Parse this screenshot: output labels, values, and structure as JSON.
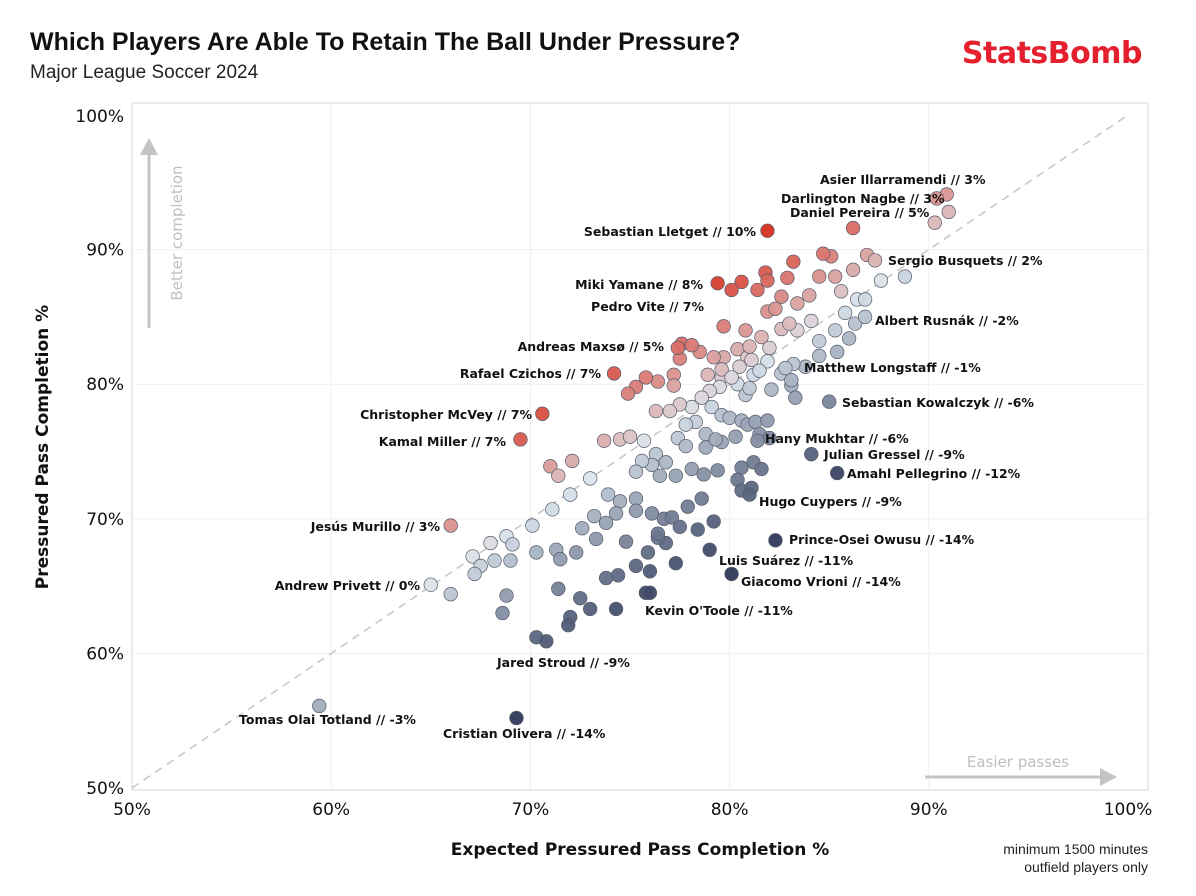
{
  "header": {
    "title": "Which Players Are Able To Retain The Ball Under Pressure?",
    "subtitle": "Major League Soccer 2024",
    "brand": "StatsBomb"
  },
  "footnote": {
    "line1": "minimum 1500 minutes",
    "line2": "outfield players only"
  },
  "hints": {
    "y": "Better completion",
    "x": "Easier passes"
  },
  "colors": {
    "positive": "#d7301f",
    "neutral": "#dce6ee",
    "negative": "#2f3a5a",
    "diagonal": "#c8c8c8"
  },
  "chart_data": {
    "type": "scatter",
    "xlabel": "Expected Pressured Pass Completion %",
    "ylabel": "Pressured Pass Completion %",
    "xlim": [
      50,
      100
    ],
    "ylim": [
      50,
      100
    ],
    "x_ticks": [
      "50%",
      "60%",
      "70%",
      "80%",
      "90%",
      "100%"
    ],
    "y_ticks": [
      "100%",
      "90%",
      "80%",
      "70%",
      "60%",
      "50%"
    ],
    "reference_line": "y = x",
    "grid": true,
    "labeled_points": [
      {
        "label": "Asier Illarramendi // 3%",
        "x": 90.9,
        "y": 94.1
      },
      {
        "label": "Darlington Nagbe // 3%",
        "x": 90.4,
        "y": 93.8
      },
      {
        "label": "Daniel Pereira // 5%",
        "x": 86.2,
        "y": 91.6
      },
      {
        "label": "Sebastian Lletget // 10%",
        "x": 81.9,
        "y": 91.4
      },
      {
        "label": "Sergio Busquets // 2%",
        "x": 87.3,
        "y": 89.2
      },
      {
        "label": "Miki Yamane // 8%",
        "x": 79.4,
        "y": 87.5
      },
      {
        "label": "Pedro Vite // 7%",
        "x": 80.1,
        "y": 87.0
      },
      {
        "label": "Albert Rusnák // -2%",
        "x": 86.8,
        "y": 85.0
      },
      {
        "label": "Andreas Maxsø // 5%",
        "x": 77.4,
        "y": 82.7
      },
      {
        "label": "Matthew Longstaff // -1%",
        "x": 82.8,
        "y": 81.2
      },
      {
        "label": "Rafael Czichos // 7%",
        "x": 74.2,
        "y": 80.8
      },
      {
        "label": "Sebastian Kowalczyk // -6%",
        "x": 85.0,
        "y": 78.7
      },
      {
        "label": "Christopher McVey // 7%",
        "x": 70.6,
        "y": 77.8
      },
      {
        "label": "Hany Mukhtar // -6%",
        "x": 81.4,
        "y": 75.8
      },
      {
        "label": "Kamal Miller // 7%",
        "x": 69.5,
        "y": 75.9
      },
      {
        "label": "Julian Gressel // -9%",
        "x": 84.1,
        "y": 74.8
      },
      {
        "label": "Amahl Pellegrino // -12%",
        "x": 85.4,
        "y": 73.4
      },
      {
        "label": "Hugo Cuypers // -9%",
        "x": 81.0,
        "y": 71.8
      },
      {
        "label": "Jesús Murillo // 3%",
        "x": 66.0,
        "y": 69.5
      },
      {
        "label": "Prince-Osei Owusu // -14%",
        "x": 82.3,
        "y": 68.4
      },
      {
        "label": "Luis Suárez // -11%",
        "x": 79.0,
        "y": 67.7
      },
      {
        "label": "Andrew Privett // 0%",
        "x": 65.0,
        "y": 65.1
      },
      {
        "label": "Giacomo Vrioni // -14%",
        "x": 80.1,
        "y": 65.9
      },
      {
        "label": "Kevin O'Toole // -11%",
        "x": 76.0,
        "y": 64.5
      },
      {
        "label": "Jared Stroud // -9%",
        "x": 70.8,
        "y": 60.9
      },
      {
        "label": "Tomas Olai Totland // -3%",
        "x": 59.4,
        "y": 56.1
      },
      {
        "label": "Cristian Olivera // -14%",
        "x": 69.3,
        "y": 55.2
      }
    ],
    "other_points": [
      [
        90.3,
        92.0
      ],
      [
        91.0,
        92.8
      ],
      [
        88.8,
        88.0
      ],
      [
        86.9,
        89.6
      ],
      [
        85.1,
        89.5
      ],
      [
        84.7,
        89.7
      ],
      [
        83.2,
        89.1
      ],
      [
        82.6,
        86.5
      ],
      [
        83.4,
        86.0
      ],
      [
        84.0,
        86.6
      ],
      [
        84.5,
        88.0
      ],
      [
        85.3,
        88.0
      ],
      [
        86.2,
        88.5
      ],
      [
        87.6,
        87.7
      ],
      [
        85.6,
        86.9
      ],
      [
        86.4,
        86.3
      ],
      [
        81.8,
        88.3
      ],
      [
        81.9,
        87.7
      ],
      [
        81.4,
        87.0
      ],
      [
        80.6,
        87.6
      ],
      [
        82.9,
        87.9
      ],
      [
        81.9,
        85.4
      ],
      [
        82.3,
        85.6
      ],
      [
        83.4,
        84.0
      ],
      [
        84.1,
        84.7
      ],
      [
        85.8,
        85.3
      ],
      [
        86.3,
        84.5
      ],
      [
        86.8,
        86.3
      ],
      [
        79.7,
        84.3
      ],
      [
        80.8,
        84.0
      ],
      [
        82.6,
        84.1
      ],
      [
        81.6,
        83.5
      ],
      [
        83.0,
        84.5
      ],
      [
        84.5,
        83.2
      ],
      [
        85.3,
        84.0
      ],
      [
        86.0,
        83.4
      ],
      [
        85.4,
        82.4
      ],
      [
        84.5,
        82.1
      ],
      [
        83.8,
        81.3
      ],
      [
        83.2,
        81.5
      ],
      [
        82.6,
        80.8
      ],
      [
        81.9,
        81.7
      ],
      [
        81.2,
        80.7
      ],
      [
        80.4,
        80.0
      ],
      [
        79.6,
        80.5
      ],
      [
        80.8,
        79.2
      ],
      [
        81.0,
        79.7
      ],
      [
        82.1,
        79.6
      ],
      [
        83.1,
        79.9
      ],
      [
        83.1,
        80.3
      ],
      [
        83.3,
        79.0
      ],
      [
        77.6,
        83.0
      ],
      [
        77.5,
        81.9
      ],
      [
        78.5,
        82.4
      ],
      [
        79.7,
        82.0
      ],
      [
        78.1,
        82.9
      ],
      [
        79.2,
        82.0
      ],
      [
        80.4,
        82.6
      ],
      [
        80.9,
        82.0
      ],
      [
        81.1,
        81.8
      ],
      [
        79.6,
        81.1
      ],
      [
        78.9,
        80.7
      ],
      [
        77.2,
        80.7
      ],
      [
        77.2,
        79.9
      ],
      [
        76.4,
        80.2
      ],
      [
        75.8,
        80.5
      ],
      [
        75.3,
        79.8
      ],
      [
        74.9,
        79.3
      ],
      [
        81.0,
        82.8
      ],
      [
        82.0,
        82.7
      ],
      [
        80.5,
        81.3
      ],
      [
        81.5,
        81.0
      ],
      [
        80.1,
        80.5
      ],
      [
        79.5,
        79.8
      ],
      [
        79.0,
        79.5
      ],
      [
        78.6,
        79.0
      ],
      [
        78.1,
        78.3
      ],
      [
        77.5,
        78.5
      ],
      [
        77.0,
        78.0
      ],
      [
        76.3,
        78.0
      ],
      [
        79.1,
        78.3
      ],
      [
        79.6,
        77.7
      ],
      [
        80.0,
        77.5
      ],
      [
        80.6,
        77.3
      ],
      [
        80.9,
        77.0
      ],
      [
        81.3,
        77.2
      ],
      [
        81.9,
        77.3
      ],
      [
        81.5,
        76.3
      ],
      [
        82.0,
        76.0
      ],
      [
        80.3,
        76.1
      ],
      [
        79.6,
        75.7
      ],
      [
        78.8,
        76.3
      ],
      [
        78.3,
        77.2
      ],
      [
        77.8,
        77.0
      ],
      [
        77.4,
        76.0
      ],
      [
        77.8,
        75.4
      ],
      [
        78.8,
        75.3
      ],
      [
        79.3,
        75.9
      ],
      [
        73.7,
        75.8
      ],
      [
        74.5,
        75.9
      ],
      [
        75.0,
        76.1
      ],
      [
        75.7,
        75.8
      ],
      [
        76.3,
        74.8
      ],
      [
        76.8,
        74.2
      ],
      [
        76.1,
        74.0
      ],
      [
        75.6,
        74.3
      ],
      [
        75.3,
        73.5
      ],
      [
        76.5,
        73.2
      ],
      [
        77.3,
        73.2
      ],
      [
        78.1,
        73.7
      ],
      [
        78.7,
        73.3
      ],
      [
        79.4,
        73.6
      ],
      [
        80.6,
        73.8
      ],
      [
        81.2,
        74.2
      ],
      [
        81.6,
        73.7
      ],
      [
        80.4,
        72.9
      ],
      [
        80.6,
        72.1
      ],
      [
        81.1,
        72.3
      ],
      [
        72.1,
        74.3
      ],
      [
        71.0,
        73.9
      ],
      [
        71.4,
        73.2
      ],
      [
        73.0,
        73.0
      ],
      [
        72.0,
        71.8
      ],
      [
        71.1,
        70.7
      ],
      [
        73.9,
        71.8
      ],
      [
        74.5,
        71.3
      ],
      [
        75.3,
        71.5
      ],
      [
        74.3,
        70.4
      ],
      [
        75.3,
        70.6
      ],
      [
        76.1,
        70.4
      ],
      [
        76.7,
        70.0
      ],
      [
        77.1,
        70.1
      ],
      [
        77.9,
        70.9
      ],
      [
        78.6,
        71.5
      ],
      [
        79.2,
        69.8
      ],
      [
        78.4,
        69.2
      ],
      [
        77.5,
        69.4
      ],
      [
        76.8,
        68.2
      ],
      [
        76.4,
        68.6
      ],
      [
        75.9,
        67.5
      ],
      [
        74.8,
        68.3
      ],
      [
        73.8,
        69.7
      ],
      [
        73.2,
        70.2
      ],
      [
        72.6,
        69.3
      ],
      [
        73.3,
        68.5
      ],
      [
        72.3,
        67.5
      ],
      [
        70.1,
        69.5
      ],
      [
        68.8,
        68.7
      ],
      [
        68.0,
        68.2
      ],
      [
        67.1,
        67.2
      ],
      [
        67.5,
        66.5
      ],
      [
        67.2,
        65.9
      ],
      [
        69.0,
        66.9
      ],
      [
        70.3,
        67.5
      ],
      [
        71.3,
        67.7
      ],
      [
        71.5,
        67.0
      ],
      [
        69.1,
        68.1
      ],
      [
        68.2,
        66.9
      ],
      [
        66.0,
        64.4
      ],
      [
        72.0,
        62.7
      ],
      [
        72.5,
        64.1
      ],
      [
        73.0,
        63.3
      ],
      [
        74.3,
        63.3
      ],
      [
        74.4,
        65.8
      ],
      [
        75.3,
        66.5
      ],
      [
        75.8,
        64.5
      ],
      [
        76.0,
        66.1
      ],
      [
        77.3,
        66.7
      ],
      [
        76.4,
        68.9
      ],
      [
        73.8,
        65.6
      ],
      [
        71.4,
        64.8
      ],
      [
        68.8,
        64.3
      ],
      [
        68.6,
        63.0
      ],
      [
        70.3,
        61.2
      ],
      [
        71.9,
        62.1
      ]
    ]
  }
}
